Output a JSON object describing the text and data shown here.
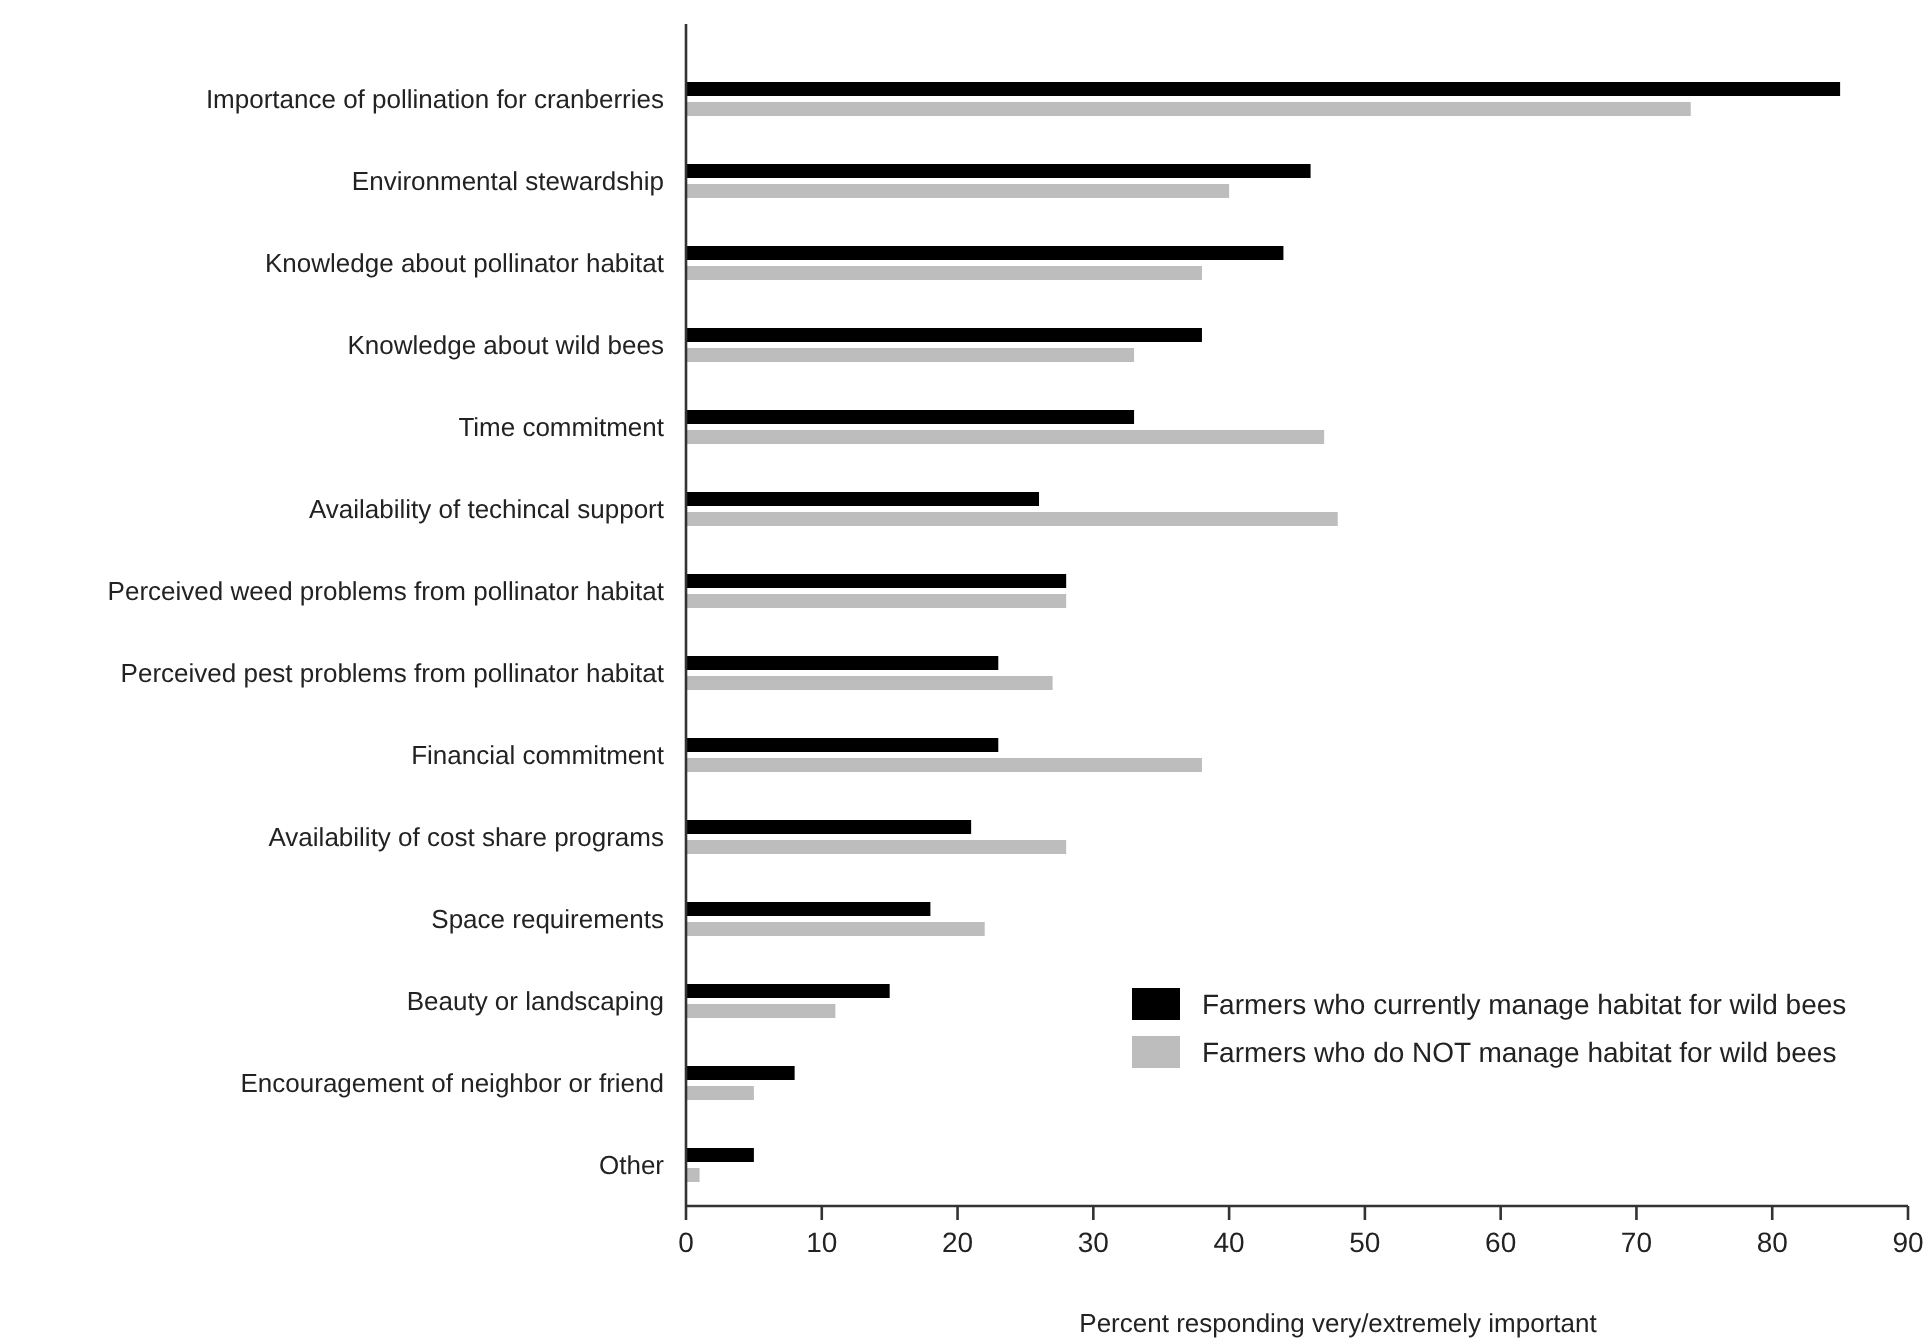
{
  "chart_data": {
    "type": "bar",
    "orientation": "horizontal",
    "xlabel": "Percent responding very/extremely important",
    "categories": [
      "Importance of pollination for cranberries",
      "Environmental stewardship",
      "Knowledge about pollinator habitat",
      "Knowledge about wild bees",
      "Time commitment",
      "Availability of techincal support",
      "Perceived weed problems from pollinator habitat",
      "Perceived pest problems from pollinator habitat",
      "Financial commitment",
      "Availability of cost share programs",
      "Space requirements",
      "Beauty or landscaping",
      "Encouragement of neighbor or friend",
      "Other"
    ],
    "series": [
      {
        "name": "Farmers who currently manage habitat for wild bees",
        "color": "#000000",
        "values": [
          85,
          46,
          44,
          38,
          33,
          26,
          28,
          23,
          23,
          21,
          18,
          15,
          8,
          5
        ]
      },
      {
        "name": "Farmers who do NOT manage habitat for wild bees",
        "color": "#bdbdbd",
        "values": [
          74,
          40,
          38,
          33,
          47,
          48,
          28,
          27,
          38,
          28,
          22,
          11,
          5,
          1
        ]
      }
    ],
    "xlim": [
      0,
      90
    ],
    "xticks": [
      0,
      10,
      20,
      30,
      40,
      50,
      60,
      70,
      80,
      90
    ],
    "grid": false,
    "legend": "bottom right"
  }
}
